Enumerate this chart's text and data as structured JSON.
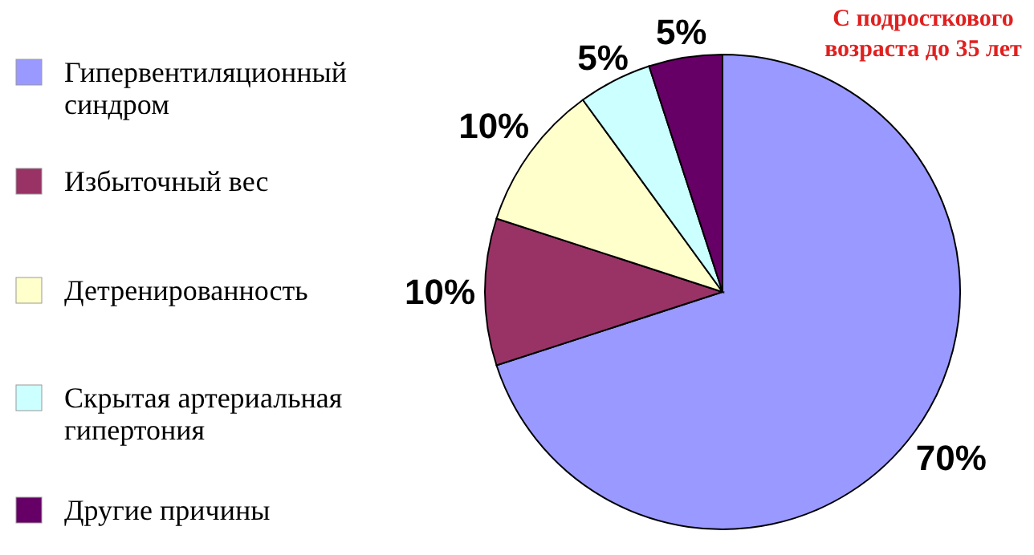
{
  "chart_data": {
    "type": "pie",
    "title": "С подросткового возраста до 35 лет",
    "categories": [
      "Гипервентиляционный синдром",
      "Избыточный вес",
      "Детренированность",
      "Скрытая артериальная гипертония",
      "Другие причины"
    ],
    "values": [
      70,
      10,
      10,
      5,
      5
    ],
    "colors": [
      "#9999ff",
      "#993366",
      "#ffffcc",
      "#ccffff",
      "#660066"
    ],
    "value_labels": [
      "70%",
      "10%",
      "10%",
      "5%",
      "5%"
    ],
    "legend": "left"
  }
}
